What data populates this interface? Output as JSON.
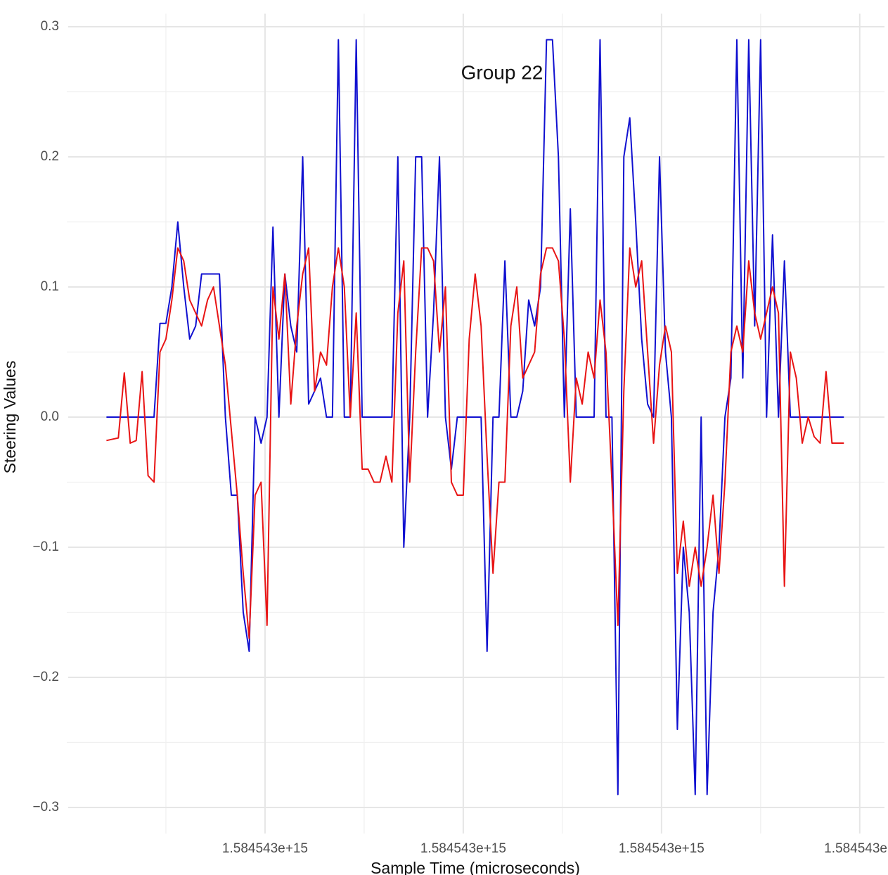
{
  "chart_data": {
    "type": "line",
    "title": "Group 22",
    "x_label": "Sample Time (microseconds)",
    "y_label": "Steering Values",
    "x": [
      1584542960000000,
      1584542961500000,
      1584542963000000,
      1584542964500000,
      1584542966000000,
      1584542967500000,
      1584542969000000,
      1584542970500000,
      1584542972000000,
      1584542973500000,
      1584542975000000,
      1584542976500000,
      1584542978000000,
      1584542979500000,
      1584542981000000,
      1584542982500000,
      1584542984000000,
      1584542985500000,
      1584542987000000,
      1584542988500000,
      1584542990000000,
      1584542991500000,
      1584542993000000,
      1584542994500000,
      1584542996000000,
      1584542997500000,
      1584542999000000,
      1584543000500000,
      1584543002000000,
      1584543003500000,
      1584543005000000,
      1584543006500000,
      1584543008000000,
      1584543009500000,
      1584543011000000,
      1584543012500000,
      1584543014000000,
      1584543015500000,
      1584543017000000,
      1584543018500000,
      1584543020000000,
      1584543021500000,
      1584543023000000,
      1584543024500000,
      1584543026000000,
      1584543027500000,
      1584543029000000,
      1584543030500000,
      1584543032000000,
      1584543033500000,
      1584543035000000,
      1584543036500000,
      1584543038000000,
      1584543039500000,
      1584543041000000,
      1584543042500000,
      1584543044000000,
      1584543045500000,
      1584543047000000,
      1584543048500000,
      1584543050000000,
      1584543051500000,
      1584543053000000,
      1584543054500000,
      1584543056000000,
      1584543057500000,
      1584543059000000,
      1584543060500000,
      1584543062000000,
      1584543063500000,
      1584543065000000,
      1584543066500000,
      1584543068000000,
      1584543069500000,
      1584543071000000,
      1584543072500000,
      1584543074000000,
      1584543075500000,
      1584543077000000,
      1584543078500000,
      1584543080000000,
      1584543081500000,
      1584543083000000,
      1584543084500000,
      1584543086000000,
      1584543087500000,
      1584543089000000,
      1584543090500000,
      1584543092000000,
      1584543093500000,
      1584543095000000,
      1584543096500000,
      1584543098000000,
      1584543099500000,
      1584543101000000,
      1584543102500000,
      1584543104000000,
      1584543105500000,
      1584543107000000,
      1584543108500000,
      1584543110000000,
      1584543111500000,
      1584543113000000,
      1584543114500000,
      1584543116000000,
      1584543117500000,
      1584543119000000,
      1584543120500000,
      1584543122000000,
      1584543123500000,
      1584543125000000,
      1584543126500000,
      1584543128000000,
      1584543129500000,
      1584543131000000,
      1584543132500000,
      1584543134000000,
      1584543135500000,
      1584543137000000,
      1584543138500000,
      1584543140000000,
      1584543141500000,
      1584543143000000,
      1584543144500000,
      1584543146000000
    ],
    "series": [
      {
        "color": "#1010d0",
        "values": [
          0,
          0,
          0,
          0,
          0,
          0,
          0,
          0,
          0,
          0.072,
          0.072,
          0.1,
          0.15,
          0.1,
          0.06,
          0.07,
          0.11,
          0.11,
          0.11,
          0.11,
          0,
          -0.06,
          -0.06,
          -0.15,
          -0.18,
          0,
          -0.02,
          0,
          0.146,
          0,
          0.11,
          0.07,
          0.05,
          0.2,
          0.01,
          0.02,
          0.03,
          0,
          0,
          0.29,
          0,
          0,
          0.29,
          0,
          0,
          0,
          0,
          0,
          0,
          0.2,
          -0.1,
          0,
          0.2,
          0.2,
          0,
          0.08,
          0.2,
          0,
          -0.04,
          0,
          0,
          0,
          0,
          0,
          -0.18,
          0,
          0,
          0.12,
          0,
          0,
          0.02,
          0.09,
          0.07,
          0.1,
          0.29,
          0.29,
          0.2,
          0,
          0.16,
          0,
          0,
          0,
          0,
          0.29,
          0,
          0,
          -0.29,
          0.2,
          0.23,
          0.15,
          0.06,
          0.01,
          0,
          0.2,
          0.05,
          0,
          -0.24,
          -0.1,
          -0.15,
          -0.29,
          0,
          -0.29,
          -0.15,
          -0.1,
          0,
          0.03,
          0.29,
          0.03,
          0.29,
          0.07,
          0.29,
          0,
          0.14,
          0,
          0.12,
          0,
          0,
          0,
          0,
          0,
          0,
          0,
          0,
          0,
          0
        ]
      },
      {
        "color": "#e81414",
        "values": [
          -0.018,
          -0.017,
          -0.016,
          0.034,
          -0.02,
          -0.018,
          0.035,
          -0.045,
          -0.05,
          0.05,
          0.06,
          0.09,
          0.13,
          0.12,
          0.09,
          0.08,
          0.07,
          0.09,
          0.1,
          0.07,
          0.04,
          -0.01,
          -0.06,
          -0.12,
          -0.17,
          -0.06,
          -0.05,
          -0.16,
          0.1,
          0.06,
          0.11,
          0.01,
          0.07,
          0.11,
          0.13,
          0.02,
          0.05,
          0.04,
          0.1,
          0.13,
          0.1,
          0,
          0.08,
          -0.04,
          -0.04,
          -0.05,
          -0.05,
          -0.03,
          -0.05,
          0.08,
          0.12,
          -0.05,
          0.05,
          0.13,
          0.13,
          0.12,
          0.05,
          0.1,
          -0.05,
          -0.06,
          -0.06,
          0.06,
          0.11,
          0.07,
          -0.03,
          -0.12,
          -0.05,
          -0.05,
          0.07,
          0.1,
          0.03,
          0.04,
          0.05,
          0.11,
          0.13,
          0.13,
          0.12,
          0.06,
          -0.05,
          0.03,
          0.01,
          0.05,
          0.03,
          0.09,
          0.05,
          -0.05,
          -0.16,
          0.02,
          0.13,
          0.1,
          0.12,
          0.05,
          -0.02,
          0.04,
          0.07,
          0.05,
          -0.12,
          -0.08,
          -0.13,
          -0.1,
          -0.13,
          -0.1,
          -0.06,
          -0.12,
          -0.05,
          0.05,
          0.07,
          0.05,
          0.12,
          0.08,
          0.06,
          0.08,
          0.1,
          0.08,
          -0.13,
          0.05,
          0.03,
          -0.02,
          0,
          -0.015,
          -0.02,
          0.035,
          -0.02,
          -0.02,
          -0.02
        ]
      }
    ],
    "xlim": [
      1584542950000000,
      1584543155000000
    ],
    "xticks": [
      {
        "value": 1584543000000000,
        "label": "1.584543e+15"
      },
      {
        "value": 1584543050000000,
        "label": "1.584543e+15"
      },
      {
        "value": 1584543100000000,
        "label": "1.584543e+15"
      },
      {
        "value": 1584543150000000,
        "label": "1.584543e"
      }
    ],
    "xminor": [
      1584542975000000,
      1584543025000000,
      1584543075000000,
      1584543125000000
    ],
    "ylim": [
      -0.32,
      0.31
    ],
    "yticks": [
      {
        "value": -0.3,
        "label": "−0.3"
      },
      {
        "value": -0.2,
        "label": "−0.2"
      },
      {
        "value": -0.1,
        "label": "−0.1"
      },
      {
        "value": 0,
        "label": "0.0"
      },
      0.1,
      0.2,
      0.3
    ],
    "yminor": [
      -0.25,
      -0.15,
      -0.05,
      0.05,
      0.15,
      0.25
    ],
    "grid": true
  }
}
